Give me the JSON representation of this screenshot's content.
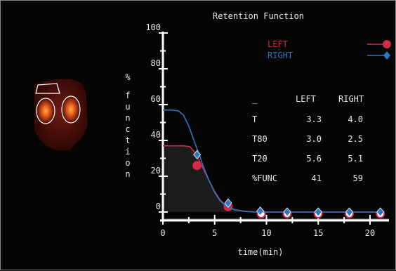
{
  "chart_data": {
    "type": "line",
    "title": "Retention Function",
    "xlabel": "time(min)",
    "ylabel": "% function",
    "xlim": [
      0,
      21
    ],
    "ylim": [
      -2,
      100
    ],
    "xticks": [
      "0",
      "5",
      "10",
      "15",
      "20"
    ],
    "yticks": [
      "0",
      "20",
      "40",
      "60",
      "80",
      "100"
    ],
    "legend_position": "top-right",
    "series": [
      {
        "name": "LEFT",
        "color": "#d42a4a",
        "marker": "circle",
        "curve": [
          [
            0,
            37
          ],
          [
            1,
            37
          ],
          [
            2,
            37
          ],
          [
            2.6,
            36.5
          ],
          [
            3,
            34
          ],
          [
            3.5,
            29
          ],
          [
            4,
            23
          ],
          [
            4.5,
            17
          ],
          [
            5,
            11.5
          ],
          [
            5.5,
            7
          ],
          [
            6,
            4
          ],
          [
            6.5,
            2.2
          ],
          [
            7,
            1.2
          ],
          [
            8,
            0.4
          ],
          [
            9,
            0.1
          ],
          [
            10,
            0
          ],
          [
            14,
            0
          ],
          [
            21,
            0
          ]
        ],
        "markers": [
          [
            3.3,
            26
          ],
          [
            6.3,
            3
          ],
          [
            9.5,
            -1
          ],
          [
            12,
            -1
          ],
          [
            15,
            -1
          ],
          [
            18,
            -1
          ],
          [
            21,
            -1
          ]
        ]
      },
      {
        "name": "RIGHT",
        "color": "#2a78c0",
        "marker": "diamond",
        "curve": [
          [
            0,
            57
          ],
          [
            0.8,
            57
          ],
          [
            1.5,
            56.5
          ],
          [
            2,
            54
          ],
          [
            2.5,
            48
          ],
          [
            3,
            40
          ],
          [
            3.5,
            32
          ],
          [
            4,
            24
          ],
          [
            4.5,
            17
          ],
          [
            5,
            11
          ],
          [
            5.5,
            6.5
          ],
          [
            6,
            3.8
          ],
          [
            6.5,
            2.2
          ],
          [
            7,
            1.2
          ],
          [
            8,
            0.3
          ],
          [
            9,
            0
          ],
          [
            21,
            0
          ]
        ],
        "markers": [
          [
            3.3,
            32
          ],
          [
            6.3,
            5
          ],
          [
            9.4,
            0.5
          ],
          [
            12,
            0
          ],
          [
            15,
            0
          ],
          [
            18,
            0
          ],
          [
            21,
            0
          ]
        ]
      }
    ],
    "table": {
      "header": [
        "_",
        "LEFT",
        "RIGHT"
      ],
      "rows": [
        [
          "T",
          "3.3",
          "4.0"
        ],
        [
          "T80",
          "3.0",
          "2.5"
        ],
        [
          "T20",
          "5.6",
          "5.1"
        ],
        [
          "%FUNC",
          "41",
          "59"
        ]
      ]
    }
  },
  "kidney_image": {
    "description_icon": "renal-scan-image"
  }
}
